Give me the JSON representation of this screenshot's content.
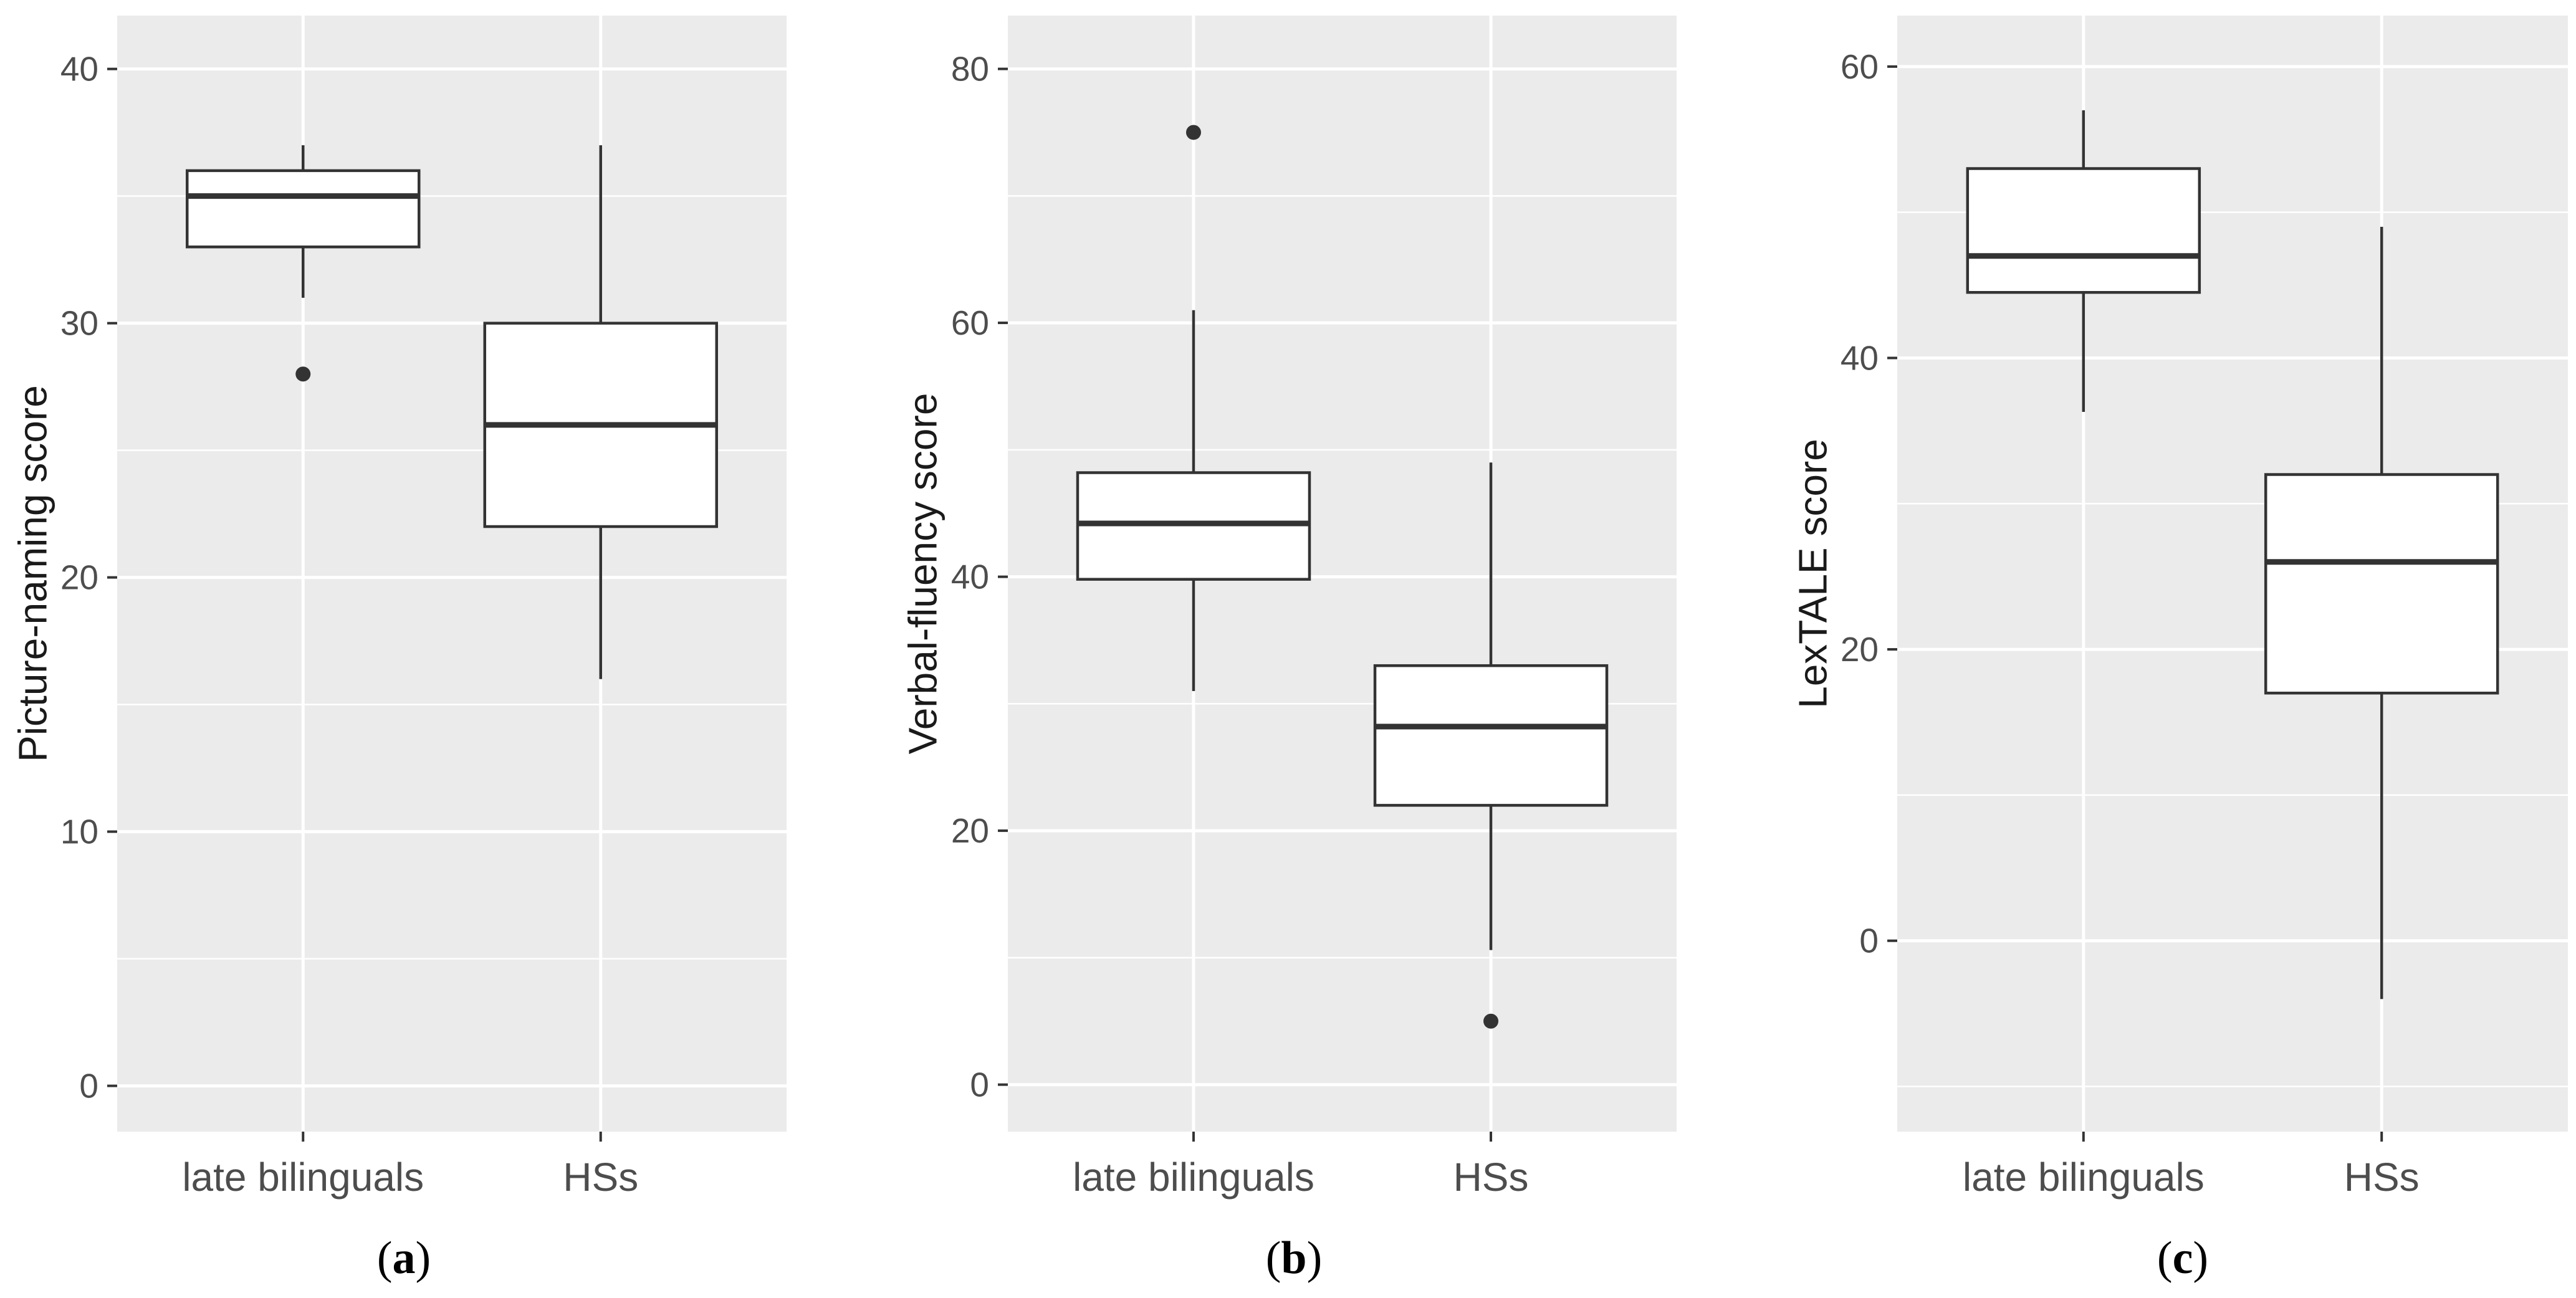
{
  "colors": {
    "panel_background": "#ebebeb",
    "grid": "#ffffff",
    "box_fill": "#ffffff",
    "box_stroke": "#333333",
    "outlier": "#333333",
    "tick_text": "#4d4d4d"
  },
  "chart_data": [
    {
      "type": "boxplot",
      "panel_label": "a",
      "ylabel": "Picture-naming score",
      "xlabel": "",
      "ylim": [
        -1.8,
        42.1
      ],
      "yticks": [
        0,
        10,
        20,
        30,
        40
      ],
      "categories": [
        "late bilinguals",
        "HSs"
      ],
      "boxes": [
        {
          "category": "late bilinguals",
          "whisker_low": 31,
          "q1": 33,
          "median": 35,
          "q3": 36,
          "whisker_high": 37,
          "outliers": [
            28
          ]
        },
        {
          "category": "HSs",
          "whisker_low": 16,
          "q1": 22,
          "median": 26,
          "q3": 30,
          "whisker_high": 37,
          "outliers": []
        }
      ]
    },
    {
      "type": "boxplot",
      "panel_label": "b",
      "ylabel": "Verbal-fluency score",
      "xlabel": "",
      "ylim": [
        -3.7,
        84.2
      ],
      "yticks": [
        0,
        20,
        40,
        60,
        80
      ],
      "categories": [
        "late bilinguals",
        "HSs"
      ],
      "boxes": [
        {
          "category": "late bilinguals",
          "whisker_low": 31,
          "q1": 39.8,
          "median": 44.2,
          "q3": 48.2,
          "whisker_high": 61,
          "outliers": [
            75
          ]
        },
        {
          "category": "HSs",
          "whisker_low": 10.6,
          "q1": 22,
          "median": 28.2,
          "q3": 33,
          "whisker_high": 49,
          "outliers": [
            5
          ]
        }
      ]
    },
    {
      "type": "boxplot",
      "panel_label": "c",
      "ylabel": "LexTALE score",
      "xlabel": "",
      "ylim": [
        -13.1,
        63.5
      ],
      "yticks": [
        0,
        20,
        40,
        60
      ],
      "categories": [
        "late bilinguals",
        "HSs"
      ],
      "boxes": [
        {
          "category": "late bilinguals",
          "whisker_low": 36.3,
          "q1": 44.5,
          "median": 47,
          "q3": 53,
          "whisker_high": 57,
          "outliers": []
        },
        {
          "category": "HSs",
          "whisker_low": -4,
          "q1": 17,
          "median": 26,
          "q3": 32,
          "whisker_high": 49,
          "outliers": []
        }
      ]
    }
  ]
}
